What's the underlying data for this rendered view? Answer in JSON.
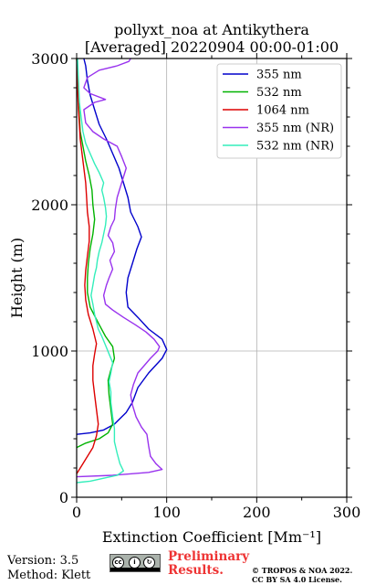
{
  "chart_data": {
    "type": "line",
    "title_line1": "pollyxt_noa at Antikythera",
    "title_line2": "[Averaged] 20220904 00:00-01:00",
    "xlabel": "Extinction Coefficient [Mm⁻¹]",
    "ylabel": "Height (m)",
    "xlim": [
      0,
      300
    ],
    "ylim": [
      0,
      3000
    ],
    "xticks": [
      0,
      100,
      200,
      300
    ],
    "yticks": [
      0,
      1000,
      2000,
      3000
    ],
    "grid": true,
    "legend_position": "top-right",
    "series": [
      {
        "name": "355 nm",
        "color": "#0000cc",
        "points": [
          [
            0,
            430
          ],
          [
            15,
            440
          ],
          [
            30,
            460
          ],
          [
            42,
            500
          ],
          [
            55,
            580
          ],
          [
            62,
            650
          ],
          [
            68,
            750
          ],
          [
            80,
            850
          ],
          [
            95,
            950
          ],
          [
            100,
            1010
          ],
          [
            95,
            1080
          ],
          [
            80,
            1150
          ],
          [
            68,
            1230
          ],
          [
            57,
            1300
          ],
          [
            55,
            1400
          ],
          [
            57,
            1500
          ],
          [
            62,
            1600
          ],
          [
            67,
            1700
          ],
          [
            72,
            1780
          ],
          [
            68,
            1850
          ],
          [
            60,
            1950
          ],
          [
            57,
            2050
          ],
          [
            52,
            2150
          ],
          [
            47,
            2250
          ],
          [
            40,
            2350
          ],
          [
            33,
            2450
          ],
          [
            25,
            2550
          ],
          [
            20,
            2650
          ],
          [
            15,
            2750
          ],
          [
            12,
            2850
          ],
          [
            10,
            2950
          ],
          [
            8,
            3000
          ]
        ]
      },
      {
        "name": "532 nm",
        "color": "#00b300",
        "points": [
          [
            0,
            340
          ],
          [
            10,
            370
          ],
          [
            25,
            400
          ],
          [
            35,
            440
          ],
          [
            40,
            500
          ],
          [
            38,
            600
          ],
          [
            36,
            700
          ],
          [
            35,
            800
          ],
          [
            38,
            870
          ],
          [
            42,
            950
          ],
          [
            40,
            1030
          ],
          [
            32,
            1100
          ],
          [
            25,
            1180
          ],
          [
            15,
            1300
          ],
          [
            12,
            1400
          ],
          [
            12,
            1500
          ],
          [
            13,
            1600
          ],
          [
            15,
            1700
          ],
          [
            18,
            1800
          ],
          [
            20,
            1900
          ],
          [
            18,
            2000
          ],
          [
            17,
            2100
          ],
          [
            14,
            2200
          ],
          [
            10,
            2300
          ],
          [
            7,
            2400
          ],
          [
            4,
            2500
          ],
          [
            3,
            2600
          ],
          [
            2,
            2700
          ],
          [
            1,
            2800
          ],
          [
            1,
            2900
          ],
          [
            0,
            3000
          ]
        ]
      },
      {
        "name": "1064 nm",
        "color": "#dd0000",
        "points": [
          [
            0,
            160
          ],
          [
            10,
            260
          ],
          [
            18,
            340
          ],
          [
            22,
            420
          ],
          [
            24,
            500
          ],
          [
            22,
            600
          ],
          [
            20,
            700
          ],
          [
            18,
            800
          ],
          [
            18,
            900
          ],
          [
            20,
            980
          ],
          [
            22,
            1050
          ],
          [
            18,
            1150
          ],
          [
            13,
            1250
          ],
          [
            10,
            1350
          ],
          [
            9,
            1450
          ],
          [
            10,
            1550
          ],
          [
            12,
            1650
          ],
          [
            14,
            1750
          ],
          [
            14,
            1850
          ],
          [
            12,
            1950
          ],
          [
            11,
            2050
          ],
          [
            10,
            2150
          ],
          [
            8,
            2250
          ],
          [
            6,
            2350
          ],
          [
            4,
            2450
          ],
          [
            3,
            2550
          ],
          [
            2,
            2650
          ],
          [
            1,
            2800
          ],
          [
            1,
            2900
          ],
          [
            0,
            3000
          ]
        ]
      },
      {
        "name": "355 nm (NR)",
        "color": "#9933ee",
        "points": [
          [
            0,
            140
          ],
          [
            40,
            150
          ],
          [
            80,
            170
          ],
          [
            95,
            190
          ],
          [
            88,
            230
          ],
          [
            82,
            280
          ],
          [
            80,
            350
          ],
          [
            78,
            430
          ],
          [
            72,
            480
          ],
          [
            66,
            550
          ],
          [
            62,
            630
          ],
          [
            60,
            700
          ],
          [
            63,
            770
          ],
          [
            68,
            850
          ],
          [
            75,
            900
          ],
          [
            82,
            950
          ],
          [
            90,
            1000
          ],
          [
            92,
            1030
          ],
          [
            86,
            1080
          ],
          [
            77,
            1130
          ],
          [
            65,
            1180
          ],
          [
            52,
            1230
          ],
          [
            40,
            1280
          ],
          [
            32,
            1320
          ],
          [
            30,
            1380
          ],
          [
            33,
            1450
          ],
          [
            36,
            1500
          ],
          [
            40,
            1560
          ],
          [
            37,
            1620
          ],
          [
            42,
            1680
          ],
          [
            40,
            1740
          ],
          [
            35,
            1790
          ],
          [
            38,
            1850
          ],
          [
            42,
            1900
          ],
          [
            43,
            1970
          ],
          [
            45,
            2050
          ],
          [
            50,
            2150
          ],
          [
            55,
            2250
          ],
          [
            50,
            2330
          ],
          [
            45,
            2400
          ],
          [
            30,
            2450
          ],
          [
            18,
            2500
          ],
          [
            10,
            2560
          ],
          [
            8,
            2650
          ],
          [
            20,
            2700
          ],
          [
            32,
            2720
          ],
          [
            15,
            2760
          ],
          [
            8,
            2800
          ],
          [
            12,
            2870
          ],
          [
            25,
            2920
          ],
          [
            45,
            2950
          ],
          [
            58,
            2980
          ],
          [
            60,
            3000
          ]
        ]
      },
      {
        "name": "532 nm (NR)",
        "color": "#33eebb",
        "points": [
          [
            0,
            100
          ],
          [
            15,
            110
          ],
          [
            30,
            130
          ],
          [
            45,
            150
          ],
          [
            52,
            180
          ],
          [
            48,
            230
          ],
          [
            45,
            300
          ],
          [
            42,
            380
          ],
          [
            42,
            470
          ],
          [
            40,
            550
          ],
          [
            38,
            650
          ],
          [
            38,
            720
          ],
          [
            36,
            790
          ],
          [
            38,
            850
          ],
          [
            40,
            920
          ],
          [
            36,
            980
          ],
          [
            32,
            1040
          ],
          [
            28,
            1100
          ],
          [
            24,
            1150
          ],
          [
            22,
            1200
          ],
          [
            20,
            1250
          ],
          [
            18,
            1320
          ],
          [
            16,
            1380
          ],
          [
            18,
            1450
          ],
          [
            20,
            1520
          ],
          [
            22,
            1570
          ],
          [
            23,
            1620
          ],
          [
            25,
            1680
          ],
          [
            28,
            1740
          ],
          [
            30,
            1800
          ],
          [
            32,
            1860
          ],
          [
            33,
            1920
          ],
          [
            32,
            1980
          ],
          [
            30,
            2050
          ],
          [
            28,
            2100
          ],
          [
            30,
            2150
          ],
          [
            25,
            2220
          ],
          [
            20,
            2280
          ],
          [
            15,
            2350
          ],
          [
            10,
            2420
          ],
          [
            7,
            2500
          ],
          [
            5,
            2600
          ],
          [
            3,
            2700
          ],
          [
            2,
            2850
          ],
          [
            1,
            3000
          ]
        ]
      }
    ]
  },
  "footer": {
    "version": "Version: 3.5",
    "method": "Method: Klett",
    "license_icons": [
      "cc-icon",
      "by-icon",
      "sa-icon"
    ],
    "license_glyphs": {
      "cc": "cc",
      "by": "i",
      "sa": "↻"
    },
    "preliminary_line1": "Preliminary",
    "preliminary_line2": "Results.",
    "copyright_line1": "© TROPOS & NOA 2022.",
    "copyright_line2": "CC BY SA 4.0 License."
  }
}
